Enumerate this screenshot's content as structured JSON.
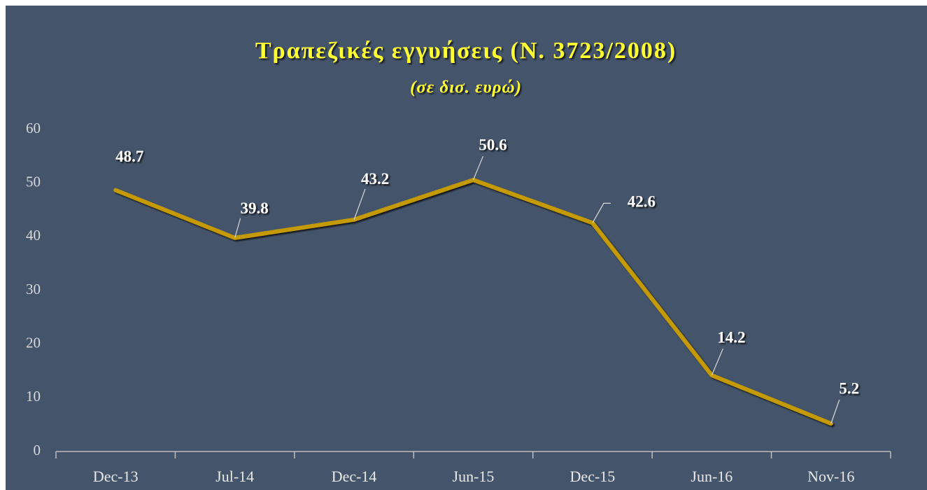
{
  "chart_data": {
    "type": "line",
    "title": "Τραπεζικές εγγυήσεις (Ν. 3723/2008)",
    "subtitle": "(σε δισ. ευρώ)",
    "categories": [
      "Dec-13",
      "Jul-14",
      "Dec-14",
      "Jun-15",
      "Dec-15",
      "Jun-16",
      "Nov-16"
    ],
    "series": [
      {
        "name": "Τραπεζικές εγγυήσεις",
        "color": "#c49a00",
        "values": [
          48.7,
          39.8,
          43.2,
          50.6,
          42.6,
          14.2,
          5.2
        ]
      }
    ],
    "ylim": [
      0,
      60
    ],
    "yticks": [
      0,
      10,
      20,
      30,
      40,
      50,
      60
    ],
    "grid": false
  }
}
